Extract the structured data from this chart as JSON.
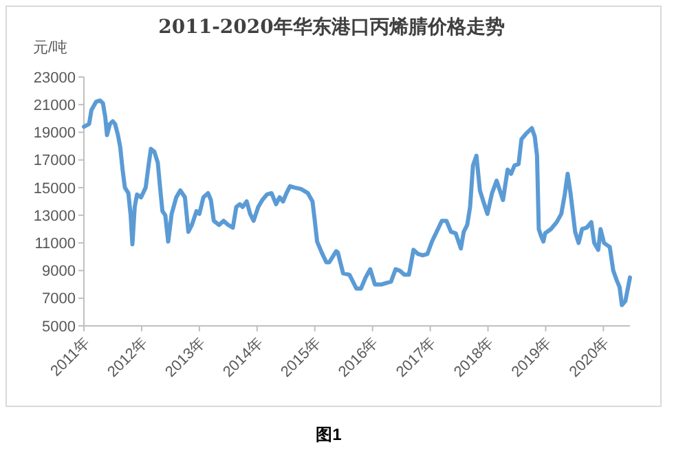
{
  "chart_data": {
    "type": "line",
    "title": "2011-2020年华东港口丙烯腈价格走势",
    "ylabel": "元/吨",
    "annotations": [
      "图1"
    ],
    "x": [
      2011.0,
      2011.09,
      2011.13,
      2011.21,
      2011.28,
      2011.33,
      2011.37,
      2011.4,
      2011.45,
      2011.5,
      2011.54,
      2011.59,
      2011.63,
      2011.67,
      2011.71,
      2011.77,
      2011.81,
      2011.84,
      2011.88,
      2011.92,
      2011.99,
      2012.07,
      2012.12,
      2012.16,
      2012.22,
      2012.28,
      2012.32,
      2012.36,
      2012.41,
      2012.46,
      2012.52,
      2012.6,
      2012.67,
      2012.75,
      2012.81,
      2012.87,
      2012.95,
      2013.0,
      2013.07,
      2013.15,
      2013.2,
      2013.25,
      2013.34,
      2013.42,
      2013.5,
      2013.58,
      2013.64,
      2013.7,
      2013.75,
      2013.82,
      2013.88,
      2013.94,
      2014.02,
      2014.09,
      2014.17,
      2014.25,
      2014.33,
      2014.39,
      2014.45,
      2014.51,
      2014.57,
      2014.65,
      2014.76,
      2014.88,
      2014.96,
      2015.0,
      2015.04,
      2015.12,
      2015.2,
      2015.25,
      2015.37,
      2015.4,
      2015.49,
      2015.6,
      2015.72,
      2015.8,
      2015.88,
      2015.96,
      2016.04,
      2016.16,
      2016.32,
      2016.4,
      2016.47,
      2016.55,
      2016.63,
      2016.71,
      2016.79,
      2016.87,
      2016.95,
      2017.03,
      2017.11,
      2017.2,
      2017.28,
      2017.36,
      2017.44,
      2017.53,
      2017.58,
      2017.64,
      2017.69,
      2017.74,
      2017.8,
      2017.86,
      2017.92,
      2017.99,
      2018.07,
      2018.15,
      2018.26,
      2018.34,
      2018.4,
      2018.46,
      2018.53,
      2018.58,
      2018.66,
      2018.76,
      2018.81,
      2018.85,
      2018.88,
      2018.92,
      2018.96,
      2018.99,
      2019.09,
      2019.19,
      2019.27,
      2019.33,
      2019.38,
      2019.43,
      2019.51,
      2019.57,
      2019.63,
      2019.71,
      2019.79,
      2019.84,
      2019.91,
      2019.95,
      2020.01,
      2020.11,
      2020.17,
      2020.23,
      2020.28,
      2020.32,
      2020.38,
      2020.46
    ],
    "series": [
      {
        "color": "#5b9bd5",
        "values": [
          19400,
          19600,
          20600,
          21200,
          21300,
          21100,
          20100,
          18800,
          19600,
          19800,
          19600,
          18800,
          17900,
          16300,
          15000,
          14600,
          13000,
          10900,
          13600,
          14500,
          14300,
          15000,
          16600,
          17800,
          17600,
          16800,
          15000,
          13300,
          13000,
          11100,
          13100,
          14300,
          14800,
          14300,
          11800,
          12300,
          13300,
          13100,
          14300,
          14600,
          14100,
          12600,
          12300,
          12600,
          12300,
          12100,
          13600,
          13800,
          13600,
          14000,
          13100,
          12600,
          13600,
          14100,
          14500,
          14600,
          13800,
          14300,
          14000,
          14600,
          15100,
          15000,
          14900,
          14600,
          14000,
          12600,
          11100,
          10300,
          9600,
          9600,
          10400,
          10300,
          8800,
          8700,
          7700,
          7700,
          8500,
          9100,
          8000,
          8000,
          8200,
          9100,
          9000,
          8700,
          8700,
          10500,
          10200,
          10100,
          10200,
          11100,
          11800,
          12600,
          12600,
          11800,
          11700,
          10600,
          11800,
          12300,
          13600,
          16600,
          17300,
          14800,
          14000,
          13100,
          14600,
          15500,
          14100,
          16300,
          16000,
          16600,
          16700,
          18500,
          18900,
          19300,
          18700,
          17300,
          12000,
          11500,
          11100,
          11700,
          12000,
          12500,
          13100,
          14500,
          16000,
          14600,
          11800,
          11000,
          12000,
          12100,
          12500,
          11000,
          10500,
          12000,
          11000,
          10700,
          9000,
          8300,
          7800,
          6500,
          6800,
          8500
        ]
      }
    ],
    "xlim": [
      2011,
      2020.46
    ],
    "xticks": [
      {
        "value": 2011,
        "label": "2011年"
      },
      {
        "value": 2012,
        "label": "2012年"
      },
      {
        "value": 2013,
        "label": "2013年"
      },
      {
        "value": 2014,
        "label": "2014年"
      },
      {
        "value": 2015,
        "label": "2015年"
      },
      {
        "value": 2016,
        "label": "2016年"
      },
      {
        "value": 2017,
        "label": "2017年"
      },
      {
        "value": 2018,
        "label": "2018年"
      },
      {
        "value": 2019,
        "label": "2019年"
      },
      {
        "value": 2020,
        "label": "2020年"
      }
    ],
    "ylim": [
      5000,
      23000
    ],
    "yticks": [
      5000,
      7000,
      9000,
      11000,
      13000,
      15000,
      17000,
      19000,
      21000,
      23000
    ],
    "grid": false,
    "marker": "none",
    "line_style": "solid"
  }
}
